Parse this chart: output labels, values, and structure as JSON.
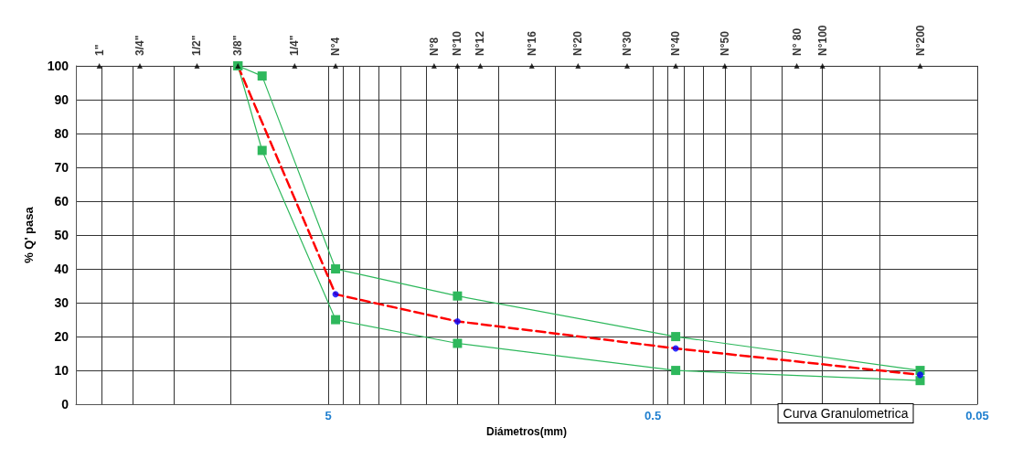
{
  "chart_data": {
    "type": "line",
    "xlabel": "Diámetros(mm)",
    "ylabel": "% Q' pasa",
    "log": "x",
    "grid": true,
    "legend": false,
    "xlim": [
      30,
      0.05
    ],
    "xticks": [
      {
        "value": 25,
        "label": null
      },
      {
        "value": 20,
        "label": null
      },
      {
        "value": 15,
        "label": null
      },
      {
        "value": 10,
        "label": null
      },
      5,
      {
        "value": 4.5,
        "label": null
      },
      {
        "value": 4,
        "label": null
      },
      {
        "value": 3.5,
        "label": null
      },
      {
        "value": 3,
        "label": null
      },
      {
        "value": 2.5,
        "label": null
      },
      {
        "value": 2,
        "label": null
      },
      {
        "value": 1.5,
        "label": null
      },
      {
        "value": 1,
        "label": null
      },
      0.5,
      {
        "value": 0.45,
        "label": null
      },
      {
        "value": 0.4,
        "label": null
      },
      {
        "value": 0.35,
        "label": null
      },
      {
        "value": 0.3,
        "label": null
      },
      {
        "value": 0.25,
        "label": null
      },
      {
        "value": 0.2,
        "label": null
      },
      {
        "value": 0.15,
        "label": null
      },
      {
        "value": 0.1,
        "label": null
      },
      0.05
    ],
    "ylim": [
      0,
      100
    ],
    "yticks": [
      0,
      10,
      20,
      30,
      40,
      50,
      60,
      70,
      80,
      90,
      100
    ],
    "series": [
      {
        "color": "#2eb85c",
        "marker": "square",
        "line_style": "solid",
        "x": [
          9.5,
          8,
          4.75,
          2,
          0.425,
          0.075
        ],
        "values": [
          100,
          97,
          40,
          32,
          20,
          10
        ]
      },
      {
        "color": "#2eb85c",
        "marker": "square",
        "line_style": "solid",
        "x": [
          9.5,
          8,
          4.75,
          2,
          0.425,
          0.075
        ],
        "values": [
          100,
          75,
          25,
          18,
          10,
          7
        ]
      },
      {
        "name": "Curva Granulometrica",
        "color": "#ff0000",
        "marker": "none",
        "line_style": "dashed",
        "x": [
          9.5,
          4.75,
          2,
          0.425,
          0.075
        ],
        "values": [
          100,
          32.5,
          24.5,
          16.5,
          8.7
        ]
      },
      {
        "type": "scatter",
        "color": "#0000ff",
        "marker": "circle",
        "x": [
          4.75,
          2,
          0.425,
          0.075
        ],
        "values": [
          32.5,
          24.5,
          16.5,
          8.7
        ]
      }
    ],
    "annotations": [
      {
        "text": "1\"",
        "x": 25.4,
        "y": 100
      },
      {
        "text": "3/4\"",
        "x": 19.05,
        "y": 100
      },
      {
        "text": "1/2\"",
        "x": 12.7,
        "y": 100
      },
      {
        "text": "3/8\"",
        "x": 9.5,
        "y": 100
      },
      {
        "text": "1/4\"",
        "x": 6.35,
        "y": 100
      },
      {
        "text": "N°4",
        "x": 4.75,
        "y": 100
      },
      {
        "text": "N°8",
        "x": 2.36,
        "y": 100
      },
      {
        "text": "N°10",
        "x": 2,
        "y": 100
      },
      {
        "text": "N°12",
        "x": 1.7,
        "y": 100
      },
      {
        "text": "N°16",
        "x": 1.18,
        "y": 100
      },
      {
        "text": "N°20",
        "x": 0.85,
        "y": 100
      },
      {
        "text": "N°30",
        "x": 0.6,
        "y": 100
      },
      {
        "text": "N°40",
        "x": 0.425,
        "y": 100
      },
      {
        "text": "N°50",
        "x": 0.3,
        "y": 100
      },
      {
        "text": "N° 80",
        "x": 0.18,
        "y": 100
      },
      {
        "text": "N°100",
        "x": 0.15,
        "y": 100
      },
      {
        "text": "N°200",
        "x": 0.075,
        "y": 100
      }
    ]
  }
}
